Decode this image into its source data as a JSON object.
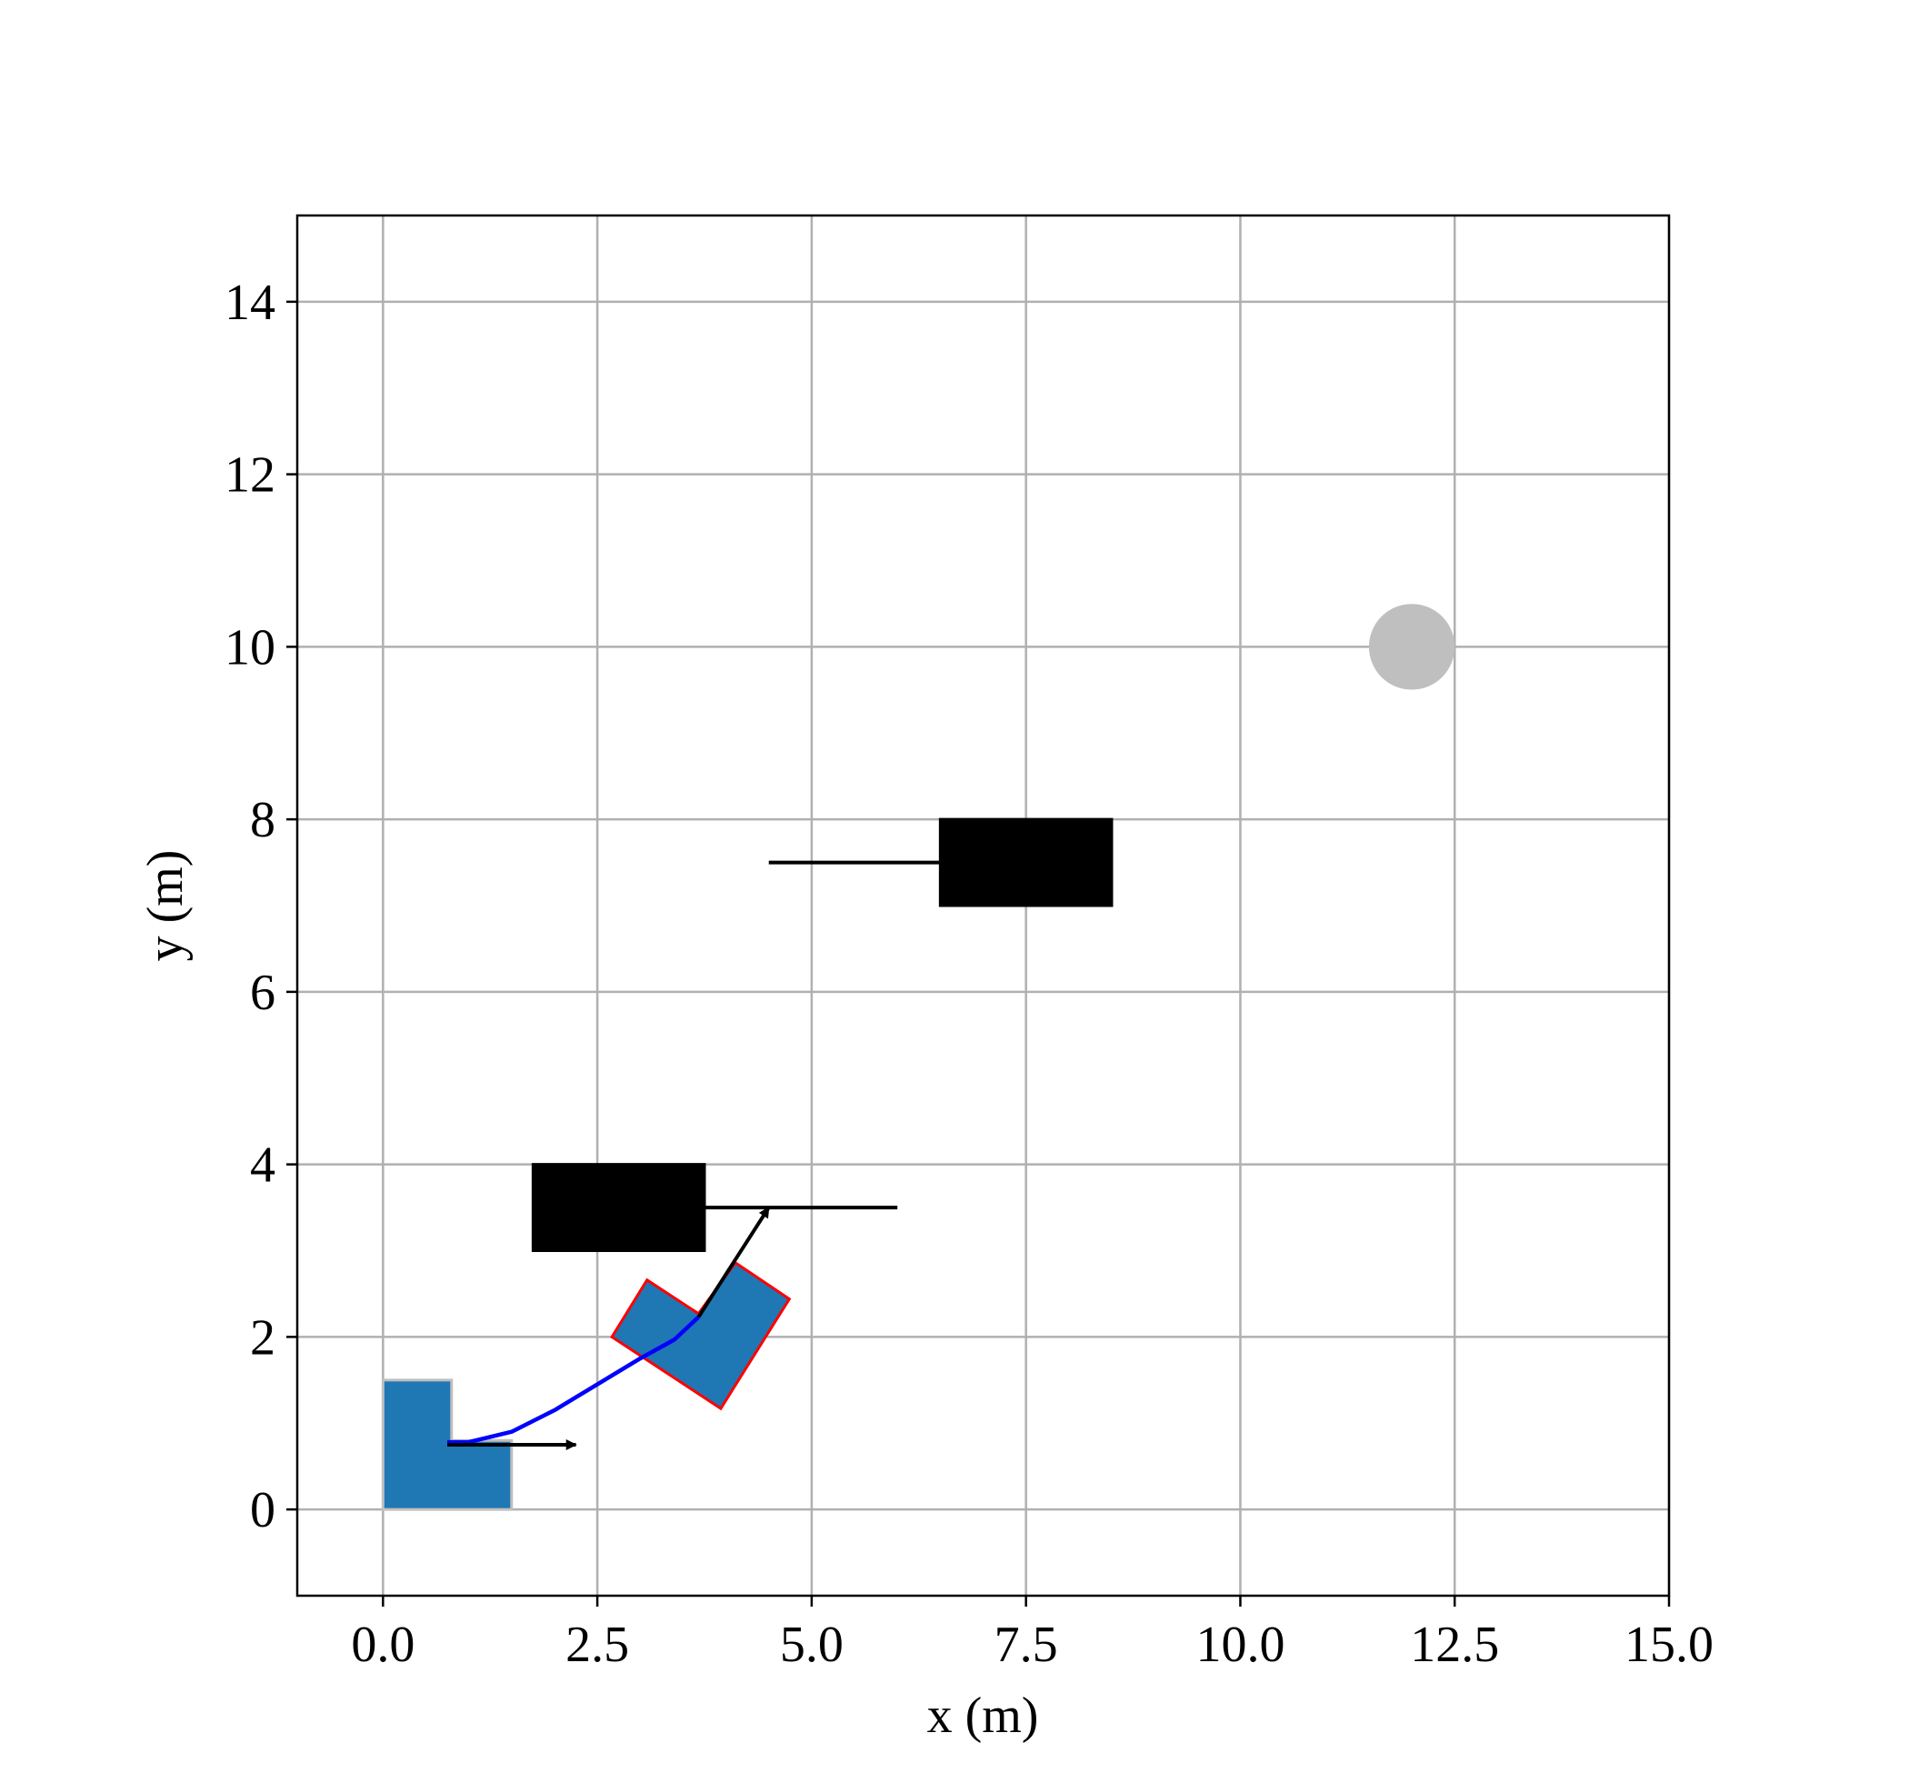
{
  "chart_data": {
    "type": "scene",
    "xlabel": "x (m)",
    "ylabel": "y (m)",
    "xlim": [
      -1,
      15
    ],
    "ylim": [
      -1,
      15
    ],
    "xticks": [
      {
        "value": 0,
        "label": "0.0"
      },
      {
        "value": 2.5,
        "label": "2.5"
      },
      {
        "value": 5,
        "label": "5.0"
      },
      {
        "value": 7.5,
        "label": "7.5"
      },
      {
        "value": 10,
        "label": "10.0"
      },
      {
        "value": 12.5,
        "label": "12.5"
      },
      {
        "value": 15,
        "label": "15.0"
      }
    ],
    "yticks": [
      0,
      2,
      4,
      6,
      8,
      10,
      12,
      14
    ],
    "grid": true,
    "polygons": [
      {
        "fill": "#1f77b4",
        "edge": "#bfbfbf",
        "x": [
          0,
          1.5,
          1.5,
          0.8,
          0.8,
          0
        ],
        "y": [
          0,
          0,
          0.8,
          0.8,
          1.5,
          1.5
        ]
      },
      {
        "fill": "#1f77b4",
        "edge": "#ff0000",
        "x": [
          2.67,
          3.08,
          3.68,
          4.11,
          4.74,
          3.94
        ],
        "y": [
          2.0,
          2.66,
          2.27,
          2.86,
          2.44,
          1.17
        ]
      },
      {
        "fill": "#000000",
        "edge": "#000000",
        "x": [
          1.75,
          3.75,
          3.75,
          1.75
        ],
        "y": [
          3,
          3,
          4,
          4
        ]
      },
      {
        "fill": "#000000",
        "edge": "#000000",
        "x": [
          6.5,
          8.5,
          8.5,
          6.5
        ],
        "y": [
          7,
          7,
          8,
          8
        ]
      }
    ],
    "segments": [
      {
        "color": "#000000",
        "x": [
          3.75,
          6.0
        ],
        "y": [
          3.5,
          3.5
        ]
      },
      {
        "color": "#000000",
        "x": [
          4.5,
          6.5
        ],
        "y": [
          7.5,
          7.5
        ]
      }
    ],
    "trajectory": {
      "color": "#0000ff",
      "x": [
        0.75,
        1.0,
        1.5,
        2.0,
        2.5,
        3.0,
        3.4,
        3.68
      ],
      "y": [
        0.78,
        0.78,
        0.9,
        1.15,
        1.45,
        1.75,
        1.97,
        2.23
      ]
    },
    "arrows": [
      {
        "color": "#000000",
        "x": [
          0.75,
          2.25
        ],
        "y": [
          0.75,
          0.75
        ]
      },
      {
        "color": "#000000",
        "x": [
          3.68,
          4.5
        ],
        "y": [
          2.23,
          3.5
        ]
      }
    ],
    "circles": [
      {
        "color": "#bfbfbf",
        "x": 12,
        "y": 10,
        "r": 0.5
      }
    ]
  }
}
